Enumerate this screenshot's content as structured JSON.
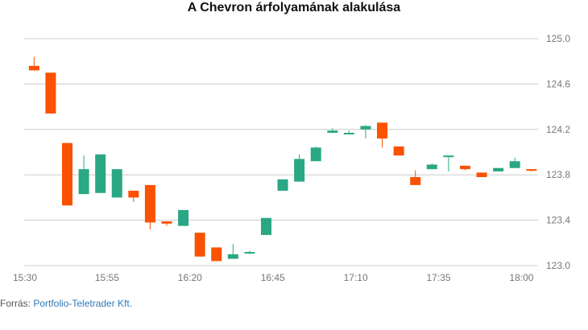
{
  "title": "A Chevron árfolyamának alakulása",
  "source": {
    "label": "Forrás: ",
    "name": "Portfolio-Teletrader Kft."
  },
  "colors": {
    "up": "#2aa784",
    "down": "#fa5200",
    "grid": "#cccccc",
    "axis_text": "#777777"
  },
  "chart_data": {
    "type": "candlestick",
    "title": "A Chevron árfolyamának alakulása",
    "xlabel": "",
    "ylabel": "",
    "ylim": [
      123.0,
      125.0
    ],
    "yticks": [
      "123.0",
      "123.4",
      "123.8",
      "124.2",
      "124.6",
      "125.0"
    ],
    "xlim": [
      "15:30",
      "18:05"
    ],
    "xticks": [
      "15:30",
      "15:55",
      "16:20",
      "16:45",
      "17:10",
      "17:35",
      "18:00"
    ],
    "grid": true,
    "candles": [
      {
        "t": "15:33",
        "o": 124.76,
        "h": 124.84,
        "l": 124.72,
        "c": 124.72
      },
      {
        "t": "15:38",
        "o": 124.7,
        "h": 124.7,
        "l": 124.34,
        "c": 124.34
      },
      {
        "t": "15:43",
        "o": 124.08,
        "h": 124.08,
        "l": 123.53,
        "c": 123.53
      },
      {
        "t": "15:48",
        "o": 123.63,
        "h": 123.97,
        "l": 123.63,
        "c": 123.85
      },
      {
        "t": "15:53",
        "o": 123.64,
        "h": 123.98,
        "l": 123.64,
        "c": 123.98
      },
      {
        "t": "15:58",
        "o": 123.6,
        "h": 123.85,
        "l": 123.6,
        "c": 123.85
      },
      {
        "t": "16:03",
        "o": 123.66,
        "h": 123.66,
        "l": 123.56,
        "c": 123.6
      },
      {
        "t": "16:08",
        "o": 123.71,
        "h": 123.71,
        "l": 123.32,
        "c": 123.38
      },
      {
        "t": "16:13",
        "o": 123.39,
        "h": 123.39,
        "l": 123.35,
        "c": 123.37
      },
      {
        "t": "16:18",
        "o": 123.35,
        "h": 123.49,
        "l": 123.35,
        "c": 123.49
      },
      {
        "t": "16:23",
        "o": 123.29,
        "h": 123.29,
        "l": 123.08,
        "c": 123.08
      },
      {
        "t": "16:28",
        "o": 123.16,
        "h": 123.16,
        "l": 123.04,
        "c": 123.04
      },
      {
        "t": "16:33",
        "o": 123.06,
        "h": 123.19,
        "l": 123.06,
        "c": 123.1
      },
      {
        "t": "16:38",
        "o": 123.12,
        "h": 123.13,
        "l": 123.1,
        "c": 123.12
      },
      {
        "t": "16:43",
        "o": 123.27,
        "h": 123.42,
        "l": 123.27,
        "c": 123.42
      },
      {
        "t": "16:48",
        "o": 123.66,
        "h": 123.76,
        "l": 123.66,
        "c": 123.76
      },
      {
        "t": "16:53",
        "o": 123.74,
        "h": 123.98,
        "l": 123.74,
        "c": 123.94
      },
      {
        "t": "16:58",
        "o": 123.92,
        "h": 124.05,
        "l": 123.92,
        "c": 124.04
      },
      {
        "t": "17:03",
        "o": 124.17,
        "h": 124.21,
        "l": 124.17,
        "c": 124.19
      },
      {
        "t": "17:08",
        "o": 124.17,
        "h": 124.19,
        "l": 124.16,
        "c": 124.17
      },
      {
        "t": "17:13",
        "o": 124.2,
        "h": 124.24,
        "l": 124.12,
        "c": 124.23
      },
      {
        "t": "17:18",
        "o": 124.26,
        "h": 124.26,
        "l": 124.04,
        "c": 124.12
      },
      {
        "t": "17:23",
        "o": 124.05,
        "h": 124.05,
        "l": 123.97,
        "c": 123.97
      },
      {
        "t": "17:28",
        "o": 123.78,
        "h": 123.84,
        "l": 123.71,
        "c": 123.71
      },
      {
        "t": "17:33",
        "o": 123.85,
        "h": 123.9,
        "l": 123.85,
        "c": 123.89
      },
      {
        "t": "17:38",
        "o": 123.96,
        "h": 123.97,
        "l": 123.83,
        "c": 123.97
      },
      {
        "t": "17:43",
        "o": 123.88,
        "h": 123.88,
        "l": 123.84,
        "c": 123.85
      },
      {
        "t": "17:48",
        "o": 123.82,
        "h": 123.82,
        "l": 123.78,
        "c": 123.78
      },
      {
        "t": "17:53",
        "o": 123.83,
        "h": 123.86,
        "l": 123.83,
        "c": 123.86
      },
      {
        "t": "17:58",
        "o": 123.86,
        "h": 123.95,
        "l": 123.86,
        "c": 123.92
      },
      {
        "t": "18:03",
        "o": 123.85,
        "h": 123.85,
        "l": 123.83,
        "c": 123.84
      }
    ]
  }
}
